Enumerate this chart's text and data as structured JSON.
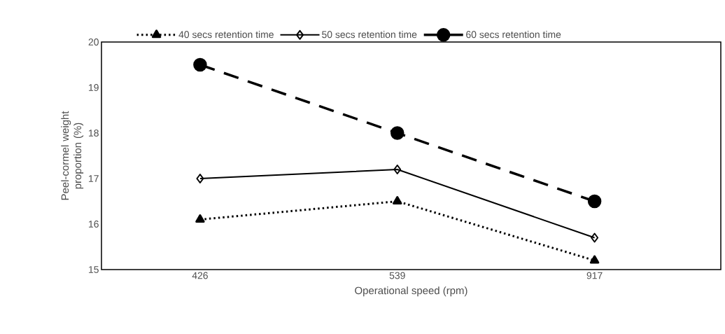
{
  "chart_data": {
    "type": "line",
    "xlabel": "Operational speed (rpm)",
    "ylabel": "Peel-cormel weight proportion (%)",
    "categories": [
      "426",
      "539",
      "917"
    ],
    "series": [
      {
        "name": "40 secs retention time",
        "color": "#000000",
        "values": [
          16.1,
          16.5,
          15.2
        ],
        "marker": "triangle",
        "line_style": "dotted"
      },
      {
        "name": "50 secs retention time",
        "color": "#000000",
        "values": [
          17.0,
          17.2,
          15.7
        ],
        "marker": "diamond",
        "line_style": "solid"
      },
      {
        "name": "60 secs retention time",
        "color": "#000000",
        "values": [
          19.5,
          18.0,
          16.5
        ],
        "marker": "circle",
        "line_style": "dashed"
      }
    ],
    "ylim": [
      15,
      20
    ],
    "yticks": [
      15,
      16,
      17,
      18,
      19,
      20
    ],
    "grid": false,
    "legend": "top"
  }
}
